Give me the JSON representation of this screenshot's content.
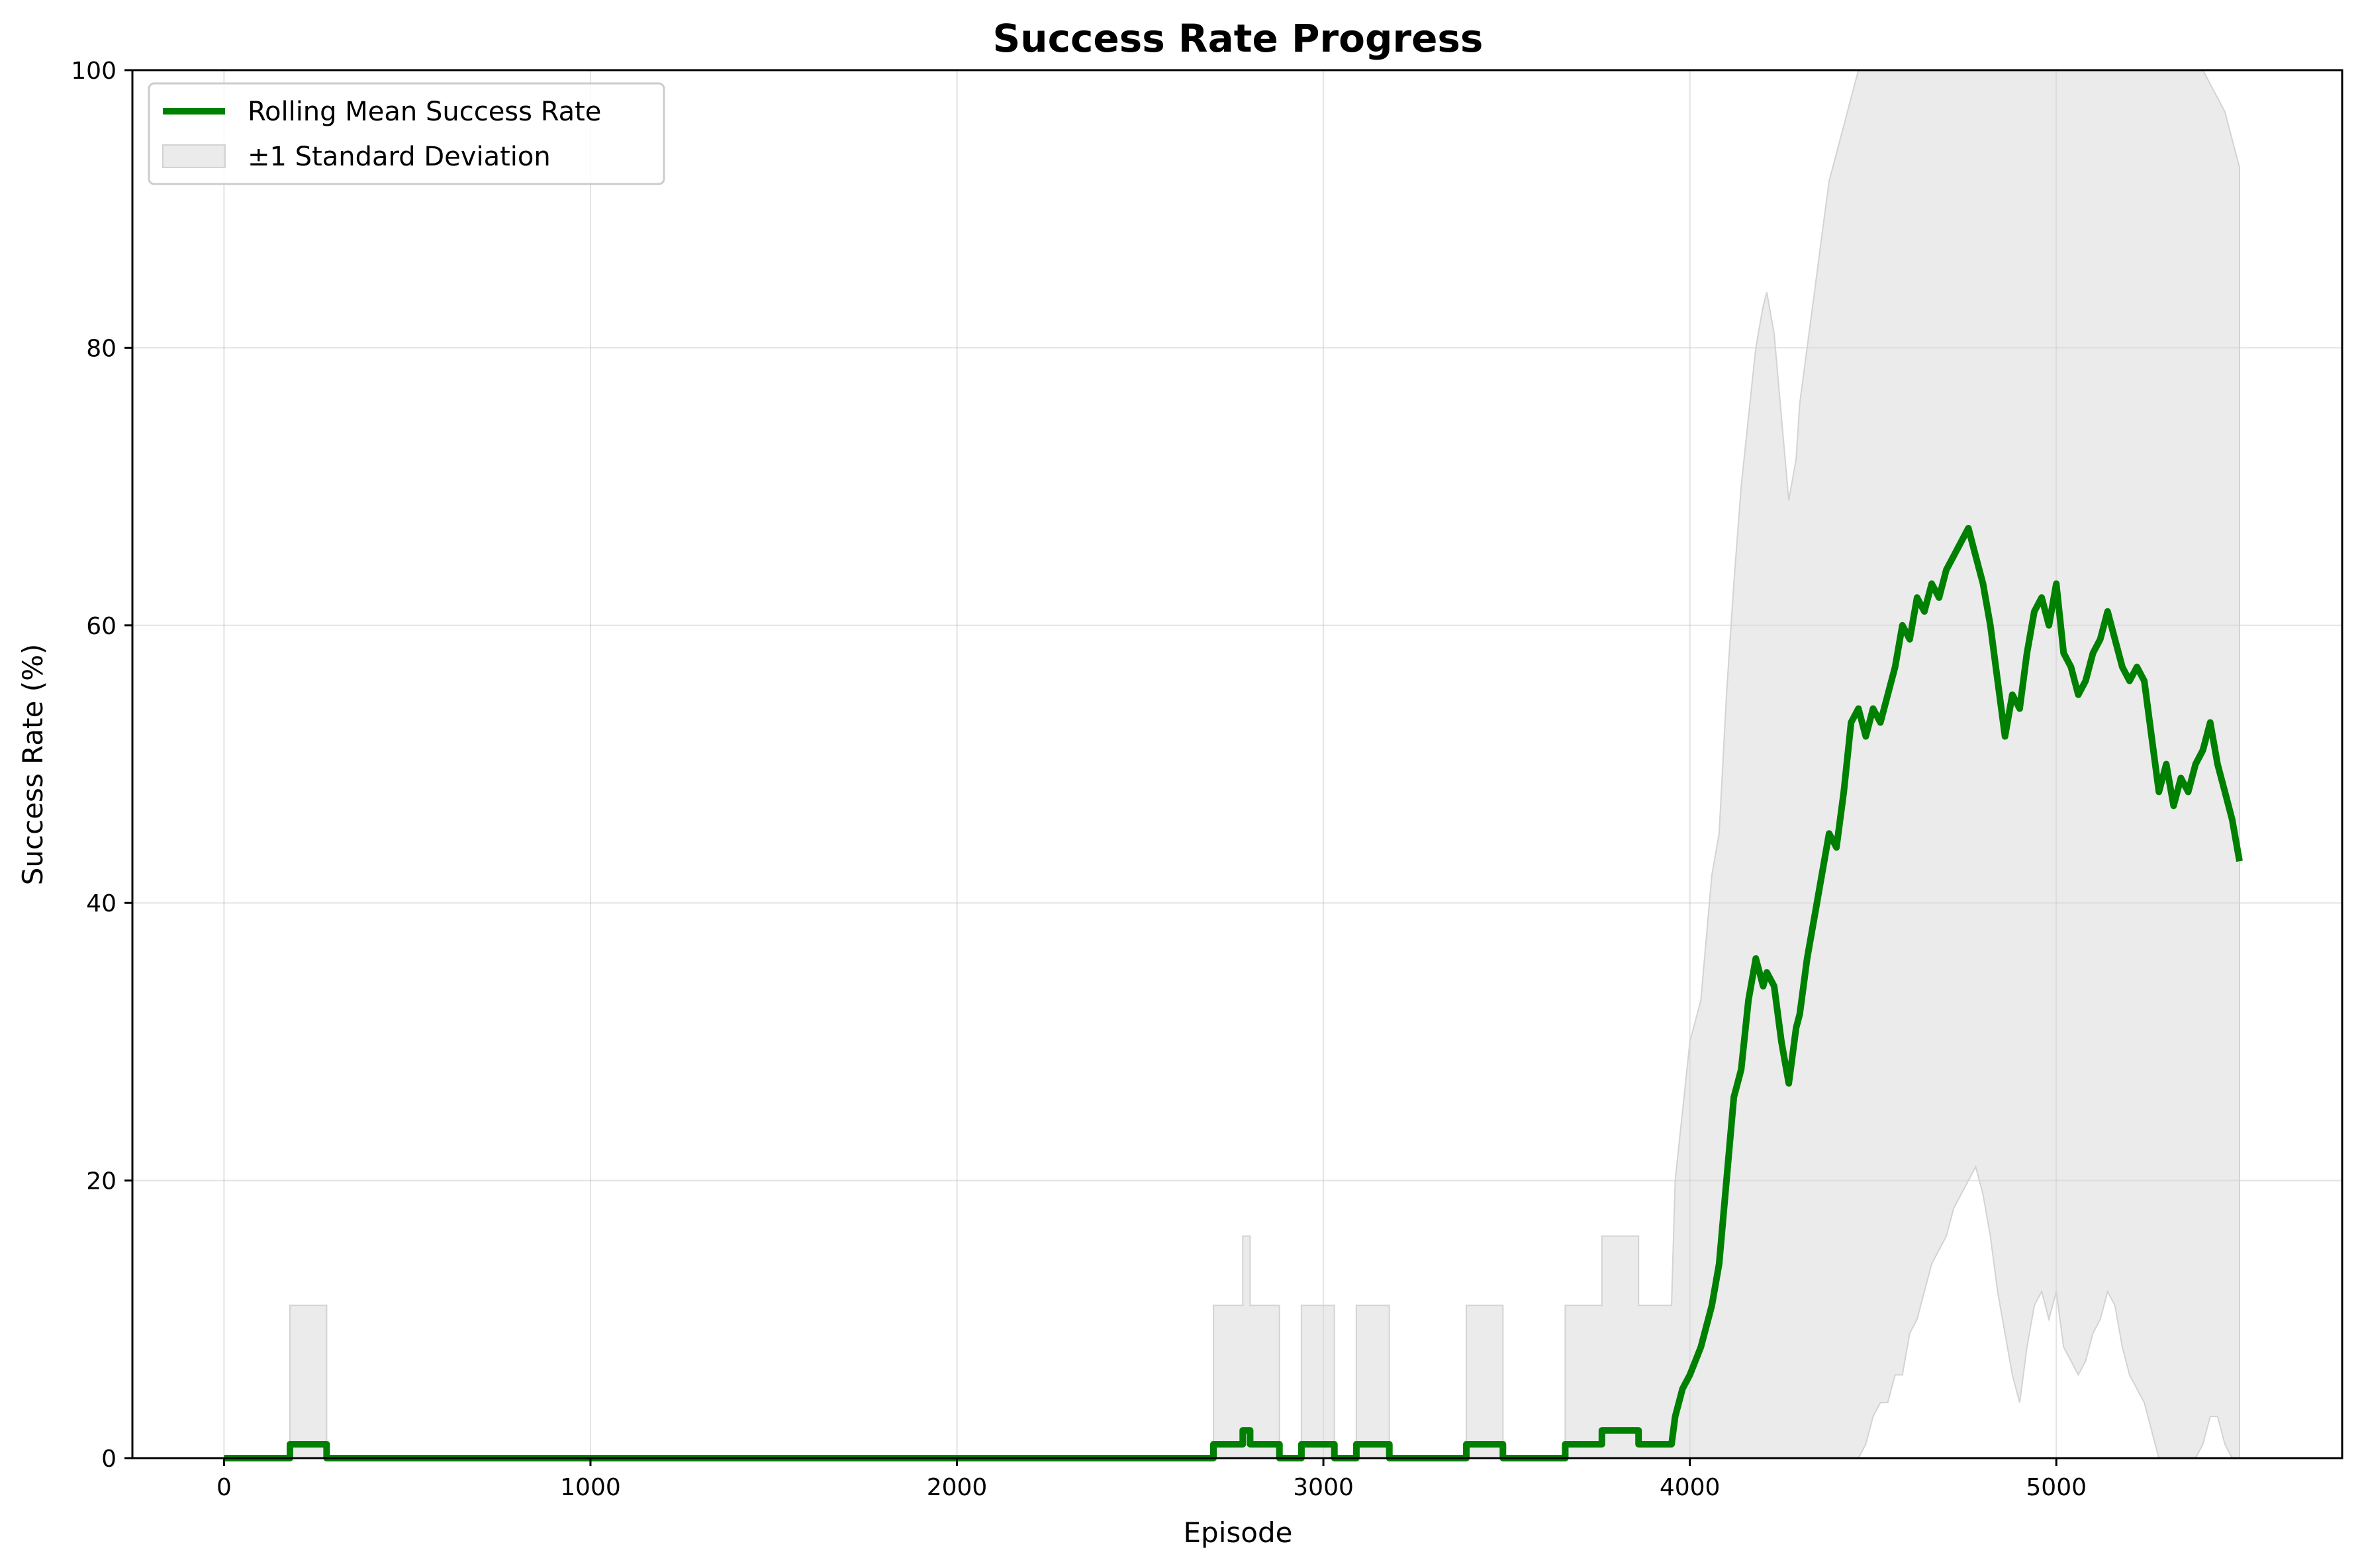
{
  "chart_data": {
    "type": "line",
    "title": "Success Rate Progress",
    "xlabel": "Episode",
    "ylabel": "Success Rate (%)",
    "xlim": [
      -250,
      5780
    ],
    "ylim": [
      0,
      100
    ],
    "xticks": [
      0,
      1000,
      2000,
      3000,
      4000,
      5000
    ],
    "yticks": [
      0,
      20,
      40,
      60,
      80,
      100
    ],
    "grid": true,
    "legend_position": "top-left",
    "colors": {
      "mean_line": "#008000",
      "std_band": "#d3d3d3"
    },
    "series": [
      {
        "name": "Rolling Mean Success Rate",
        "kind": "line",
        "x": [
          0,
          180,
          180,
          280,
          280,
          2700,
          2700,
          2780,
          2780,
          2800,
          2800,
          2880,
          2880,
          2940,
          2940,
          3030,
          3030,
          3090,
          3090,
          3180,
          3180,
          3390,
          3390,
          3490,
          3490,
          3660,
          3660,
          3760,
          3760,
          3860,
          3860,
          3950,
          3960,
          3980,
          4000,
          4030,
          4060,
          4080,
          4100,
          4120,
          4140,
          4160,
          4180,
          4200,
          4210,
          4230,
          4250,
          4270,
          4290,
          4300,
          4320,
          4340,
          4360,
          4380,
          4400,
          4420,
          4440,
          4460,
          4480,
          4500,
          4520,
          4540,
          4560,
          4580,
          4600,
          4620,
          4640,
          4660,
          4680,
          4700,
          4720,
          4740,
          4760,
          4780,
          4800,
          4820,
          4840,
          4860,
          4880,
          4900,
          4920,
          4940,
          4960,
          4980,
          5000,
          5020,
          5040,
          5060,
          5080,
          5100,
          5120,
          5140,
          5160,
          5180,
          5200,
          5220,
          5240,
          5260,
          5280,
          5300,
          5320,
          5340,
          5360,
          5380,
          5400,
          5420,
          5440,
          5460,
          5480,
          5500
        ],
        "values": [
          0,
          0,
          1,
          1,
          0,
          0,
          1,
          1,
          2,
          2,
          1,
          1,
          0,
          0,
          1,
          1,
          0,
          0,
          1,
          1,
          0,
          0,
          1,
          1,
          0,
          0,
          1,
          1,
          2,
          2,
          1,
          1,
          3,
          5,
          6,
          8,
          11,
          14,
          20,
          26,
          28,
          33,
          36,
          34,
          35,
          34,
          30,
          27,
          31,
          32,
          36,
          39,
          42,
          45,
          44,
          48,
          53,
          54,
          52,
          54,
          53,
          55,
          57,
          60,
          59,
          62,
          61,
          63,
          62,
          64,
          65,
          66,
          67,
          65,
          63,
          60,
          56,
          52,
          55,
          54,
          58,
          61,
          62,
          60,
          63,
          58,
          57,
          55,
          56,
          58,
          59,
          61,
          59,
          57,
          56,
          57,
          56,
          52,
          48,
          50,
          47,
          49,
          48,
          50,
          51,
          53,
          50,
          48,
          46,
          43
        ]
      },
      {
        "name": "±1 Standard Deviation",
        "kind": "band",
        "x": [
          0,
          180,
          180,
          280,
          280,
          2700,
          2700,
          2780,
          2780,
          2800,
          2800,
          2880,
          2880,
          2940,
          2940,
          3030,
          3030,
          3090,
          3090,
          3180,
          3180,
          3390,
          3390,
          3490,
          3490,
          3660,
          3660,
          3760,
          3760,
          3860,
          3860,
          3950,
          3960,
          3980,
          4000,
          4030,
          4060,
          4080,
          4100,
          4120,
          4140,
          4160,
          4180,
          4200,
          4210,
          4230,
          4250,
          4270,
          4290,
          4300,
          4320,
          4340,
          4360,
          4380,
          4400,
          4420,
          4440,
          4460,
          4480,
          4500,
          4520,
          4540,
          4560,
          4580,
          4600,
          4620,
          4640,
          4660,
          4680,
          4700,
          4720,
          4740,
          4760,
          4780,
          4800,
          4820,
          4840,
          4860,
          4880,
          4900,
          4920,
          4940,
          4960,
          4980,
          5000,
          5020,
          5040,
          5060,
          5080,
          5100,
          5120,
          5140,
          5160,
          5180,
          5200,
          5220,
          5240,
          5260,
          5280,
          5300,
          5320,
          5340,
          5360,
          5380,
          5400,
          5420,
          5440,
          5460,
          5480,
          5500
        ],
        "upper": [
          0,
          0,
          11,
          11,
          0,
          0,
          11,
          11,
          16,
          16,
          11,
          11,
          0,
          0,
          11,
          11,
          0,
          0,
          11,
          11,
          0,
          0,
          11,
          11,
          0,
          0,
          11,
          11,
          16,
          16,
          11,
          11,
          20,
          25,
          30,
          33,
          42,
          45,
          55,
          63,
          70,
          75,
          80,
          83,
          84,
          81,
          75,
          69,
          72,
          76,
          80,
          84,
          88,
          92,
          94,
          96,
          98,
          100,
          100,
          100,
          100,
          100,
          100,
          100,
          100,
          100,
          100,
          100,
          100,
          100,
          100,
          100,
          100,
          100,
          100,
          100,
          100,
          100,
          100,
          100,
          100,
          100,
          100,
          100,
          100,
          100,
          100,
          100,
          100,
          100,
          100,
          100,
          100,
          100,
          100,
          100,
          100,
          100,
          100,
          100,
          100,
          100,
          100,
          100,
          100,
          99,
          98,
          97,
          95,
          93
        ],
        "lower": [
          0,
          0,
          0,
          0,
          0,
          0,
          0,
          0,
          0,
          0,
          0,
          0,
          0,
          0,
          0,
          0,
          0,
          0,
          0,
          0,
          0,
          0,
          0,
          0,
          0,
          0,
          0,
          0,
          0,
          0,
          0,
          0,
          0,
          0,
          0,
          0,
          0,
          0,
          0,
          0,
          0,
          0,
          0,
          0,
          0,
          0,
          0,
          0,
          0,
          0,
          0,
          0,
          0,
          0,
          0,
          0,
          0,
          0,
          1,
          3,
          4,
          4,
          6,
          6,
          9,
          10,
          12,
          14,
          15,
          16,
          18,
          19,
          20,
          21,
          19,
          16,
          12,
          9,
          6,
          4,
          8,
          11,
          12,
          10,
          12,
          8,
          7,
          6,
          7,
          9,
          10,
          12,
          11,
          8,
          6,
          5,
          4,
          2,
          0,
          0,
          0,
          0,
          0,
          0,
          1,
          3,
          3,
          1,
          0,
          0
        ]
      }
    ]
  }
}
